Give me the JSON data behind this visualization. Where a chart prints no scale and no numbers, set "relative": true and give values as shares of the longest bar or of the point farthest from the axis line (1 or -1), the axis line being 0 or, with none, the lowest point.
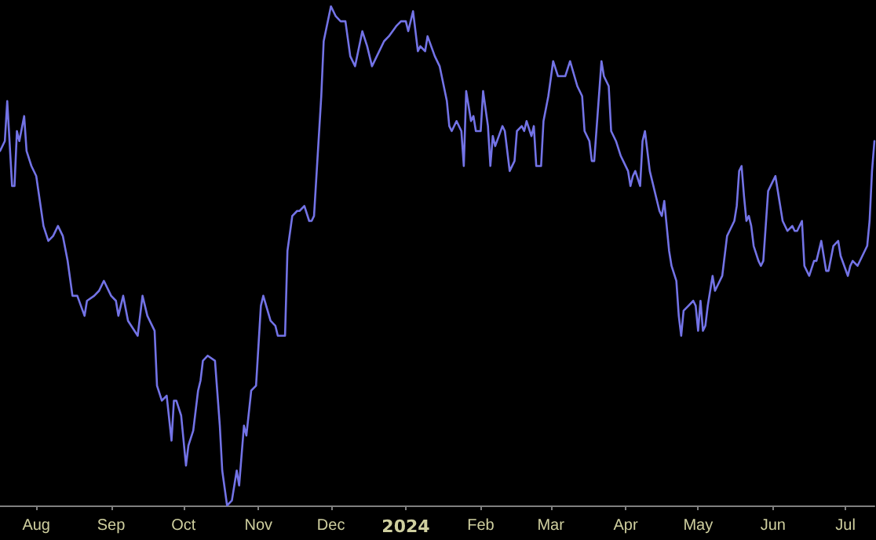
{
  "chart_data": {
    "type": "line",
    "relative": true,
    "tick_labels": "x",
    "grid": false,
    "marker": "none",
    "line_style": "solid",
    "xlim": [
      "2023-07-17",
      "2024-07-13"
    ],
    "xticks": [
      {
        "value": "2023-08-01",
        "label": "Aug"
      },
      {
        "value": "2023-09-01",
        "label": "Sep"
      },
      {
        "value": "2023-10-01",
        "label": "Oct"
      },
      {
        "value": "2023-11-01",
        "label": "Nov"
      },
      {
        "value": "2023-12-01",
        "label": "Dec"
      },
      {
        "value": "2024-01-01",
        "label": "2024"
      },
      {
        "value": "2024-02-01",
        "label": "Feb"
      },
      {
        "value": "2024-03-01",
        "label": "Mar"
      },
      {
        "value": "2024-04-01",
        "label": "Apr"
      },
      {
        "value": "2024-05-01",
        "label": "May"
      },
      {
        "value": "2024-06-01",
        "label": "Jun"
      },
      {
        "value": "2024-07-01",
        "label": "Jul"
      }
    ],
    "x": [
      "2023-07-17",
      "2023-07-19",
      "2023-07-20",
      "2023-07-22",
      "2023-07-23",
      "2023-07-24",
      "2023-07-25",
      "2023-07-27",
      "2023-07-28",
      "2023-07-30",
      "2023-08-01",
      "2023-08-04",
      "2023-08-06",
      "2023-08-08",
      "2023-08-10",
      "2023-08-12",
      "2023-08-14",
      "2023-08-16",
      "2023-08-18",
      "2023-08-21",
      "2023-08-22",
      "2023-08-25",
      "2023-08-27",
      "2023-08-29",
      "2023-09-01",
      "2023-09-03",
      "2023-09-04",
      "2023-09-06",
      "2023-09-08",
      "2023-09-12",
      "2023-09-14",
      "2023-09-16",
      "2023-09-19",
      "2023-09-20",
      "2023-09-22",
      "2023-09-24",
      "2023-09-26",
      "2023-09-27",
      "2023-09-28",
      "2023-09-30",
      "2023-10-02",
      "2023-10-03",
      "2023-10-05",
      "2023-10-07",
      "2023-10-08",
      "2023-10-09",
      "2023-10-11",
      "2023-10-14",
      "2023-10-16",
      "2023-10-17",
      "2023-10-19",
      "2023-10-21",
      "2023-10-23",
      "2023-10-24",
      "2023-10-26",
      "2023-10-27",
      "2023-10-29",
      "2023-10-31",
      "2023-11-02",
      "2023-11-03",
      "2023-11-06",
      "2023-11-08",
      "2023-11-09",
      "2023-11-12",
      "2023-11-13",
      "2023-11-15",
      "2023-11-17",
      "2023-11-18",
      "2023-11-20",
      "2023-11-22",
      "2023-11-23",
      "2023-11-24",
      "2023-11-27",
      "2023-11-28",
      "2023-12-01",
      "2023-12-03",
      "2023-12-05",
      "2023-12-07",
      "2023-12-09",
      "2023-12-11",
      "2023-12-14",
      "2023-12-16",
      "2023-12-18",
      "2023-12-20",
      "2023-12-23",
      "2023-12-25",
      "2023-12-28",
      "2023-12-30",
      "2024-01-01",
      "2024-01-02",
      "2024-01-04",
      "2024-01-06",
      "2024-01-07",
      "2024-01-09",
      "2024-01-10",
      "2024-01-13",
      "2024-01-15",
      "2024-01-18",
      "2024-01-19",
      "2024-01-20",
      "2024-01-22",
      "2024-01-24",
      "2024-01-25",
      "2024-01-26",
      "2024-01-28",
      "2024-01-29",
      "2024-01-30",
      "2024-02-01",
      "2024-02-02",
      "2024-02-04",
      "2024-02-05",
      "2024-02-06",
      "2024-02-07",
      "2024-02-10",
      "2024-02-11",
      "2024-02-13",
      "2024-02-15",
      "2024-02-16",
      "2024-02-18",
      "2024-02-19",
      "2024-02-20",
      "2024-02-22",
      "2024-02-23",
      "2024-02-24",
      "2024-02-26",
      "2024-02-27",
      "2024-02-29",
      "2024-03-02",
      "2024-03-04",
      "2024-03-06",
      "2024-03-07",
      "2024-03-09",
      "2024-03-12",
      "2024-03-14",
      "2024-03-15",
      "2024-03-17",
      "2024-03-18",
      "2024-03-19",
      "2024-03-22",
      "2024-03-23",
      "2024-03-25",
      "2024-03-26",
      "2024-03-28",
      "2024-03-30",
      "2024-03-31",
      "2024-04-02",
      "2024-04-03",
      "2024-04-04",
      "2024-04-05",
      "2024-04-07",
      "2024-04-08",
      "2024-04-09",
      "2024-04-11",
      "2024-04-14",
      "2024-04-15",
      "2024-04-16",
      "2024-04-17",
      "2024-04-18",
      "2024-04-19",
      "2024-04-20",
      "2024-04-22",
      "2024-04-23",
      "2024-04-24",
      "2024-04-25",
      "2024-04-27",
      "2024-04-29",
      "2024-04-30",
      "2024-05-01",
      "2024-05-02",
      "2024-05-03",
      "2024-05-04",
      "2024-05-05",
      "2024-05-07",
      "2024-05-08",
      "2024-05-10",
      "2024-05-11",
      "2024-05-13",
      "2024-05-14",
      "2024-05-16",
      "2024-05-17",
      "2024-05-18",
      "2024-05-19",
      "2024-05-20",
      "2024-05-21",
      "2024-05-22",
      "2024-05-23",
      "2024-05-24",
      "2024-05-26",
      "2024-05-27",
      "2024-05-28",
      "2024-05-30",
      "2024-06-01",
      "2024-06-02",
      "2024-06-04",
      "2024-06-05",
      "2024-06-07",
      "2024-06-09",
      "2024-06-10",
      "2024-06-11",
      "2024-06-13",
      "2024-06-14",
      "2024-06-16",
      "2024-06-18",
      "2024-06-19",
      "2024-06-21",
      "2024-06-23",
      "2024-06-24",
      "2024-06-26",
      "2024-06-28",
      "2024-06-29",
      "2024-07-02",
      "2024-07-03",
      "2024-07-04",
      "2024-07-06",
      "2024-07-08",
      "2024-07-10",
      "2024-07-11",
      "2024-07-12",
      "2024-07-13"
    ],
    "series": [
      {
        "color": "#7373e6",
        "values": [
          0.71,
          0.73,
          0.81,
          0.64,
          0.64,
          0.75,
          0.73,
          0.78,
          0.71,
          0.68,
          0.66,
          0.56,
          0.53,
          0.54,
          0.56,
          0.54,
          0.49,
          0.42,
          0.42,
          0.38,
          0.41,
          0.42,
          0.43,
          0.45,
          0.42,
          0.41,
          0.38,
          0.42,
          0.37,
          0.34,
          0.42,
          0.38,
          0.35,
          0.24,
          0.21,
          0.22,
          0.13,
          0.21,
          0.21,
          0.18,
          0.08,
          0.12,
          0.15,
          0.23,
          0.25,
          0.29,
          0.3,
          0.29,
          0.16,
          0.07,
          0.0,
          0.01,
          0.07,
          0.04,
          0.16,
          0.14,
          0.23,
          0.24,
          0.4,
          0.42,
          0.37,
          0.36,
          0.34,
          0.34,
          0.51,
          0.58,
          0.59,
          0.59,
          0.6,
          0.57,
          0.57,
          0.58,
          0.82,
          0.93,
          1.0,
          0.98,
          0.97,
          0.97,
          0.9,
          0.88,
          0.95,
          0.92,
          0.88,
          0.9,
          0.93,
          0.94,
          0.96,
          0.97,
          0.97,
          0.95,
          0.99,
          0.91,
          0.92,
          0.91,
          0.94,
          0.9,
          0.88,
          0.81,
          0.76,
          0.75,
          0.77,
          0.75,
          0.68,
          0.83,
          0.77,
          0.78,
          0.75,
          0.75,
          0.83,
          0.76,
          0.68,
          0.74,
          0.72,
          0.76,
          0.75,
          0.67,
          0.69,
          0.75,
          0.76,
          0.75,
          0.77,
          0.74,
          0.76,
          0.68,
          0.68,
          0.77,
          0.82,
          0.89,
          0.86,
          0.86,
          0.86,
          0.89,
          0.84,
          0.82,
          0.75,
          0.73,
          0.69,
          0.69,
          0.89,
          0.86,
          0.84,
          0.75,
          0.73,
          0.7,
          0.69,
          0.67,
          0.64,
          0.66,
          0.67,
          0.64,
          0.73,
          0.75,
          0.67,
          0.61,
          0.59,
          0.58,
          0.61,
          0.56,
          0.51,
          0.48,
          0.45,
          0.38,
          0.34,
          0.39,
          0.4,
          0.41,
          0.4,
          0.35,
          0.41,
          0.35,
          0.36,
          0.4,
          0.46,
          0.43,
          0.45,
          0.46,
          0.54,
          0.55,
          0.57,
          0.6,
          0.67,
          0.68,
          0.62,
          0.57,
          0.58,
          0.56,
          0.52,
          0.49,
          0.48,
          0.49,
          0.63,
          0.65,
          0.66,
          0.6,
          0.57,
          0.55,
          0.56,
          0.55,
          0.55,
          0.57,
          0.48,
          0.46,
          0.49,
          0.49,
          0.53,
          0.47,
          0.47,
          0.52,
          0.53,
          0.5,
          0.46,
          0.48,
          0.49,
          0.48,
          0.5,
          0.52,
          0.57,
          0.67,
          0.73
        ]
      }
    ]
  }
}
